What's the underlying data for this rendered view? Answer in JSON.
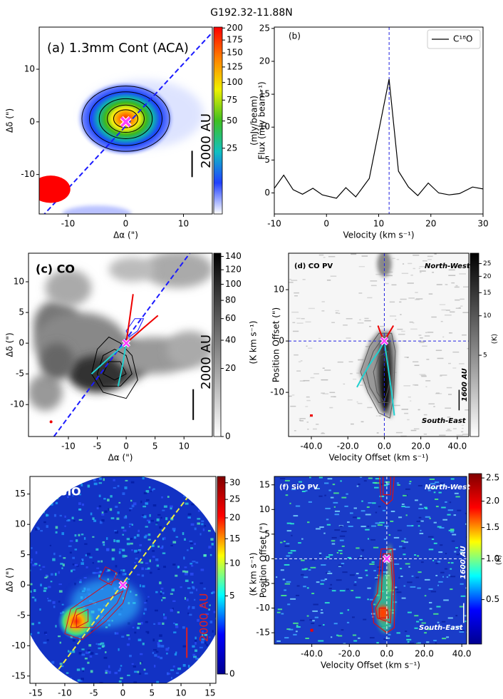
{
  "title": "G192.32-11.88N",
  "chart_data": [
    {
      "type": "image",
      "xlabel": "Δα (\")",
      "ylabel": "Δδ (\")",
      "xlim": [
        -15,
        15
      ],
      "ylim": [
        -17.5,
        18
      ],
      "xticks": [
        -10,
        0,
        10
      ],
      "yticks": [
        -10,
        0,
        10
      ],
      "colorbar": {
        "label": "(mJy/beam)",
        "lim": [
          0,
          202
        ],
        "ticks": [
          200,
          175,
          150,
          125,
          100,
          75,
          50,
          25
        ],
        "stretch": "sqrt",
        "cmap": "jet_white"
      },
      "marker": [
        0,
        0
      ],
      "annotations": [
        "(a) 1.3mm Cont (ACA)",
        "2000 AU"
      ]
    },
    {
      "type": "line",
      "xlabel": "Velocity  (km s⁻¹)",
      "ylabel": "Flux (mJy beam⁻¹)",
      "xlim": [
        -10,
        30
      ],
      "ylim": [
        -3.2,
        25.2
      ],
      "xticks": [
        -10,
        0,
        10,
        20,
        30
      ],
      "yticks": [
        0,
        5,
        10,
        15,
        20,
        25
      ],
      "x": [
        -10,
        -8.2,
        -6.4,
        -4.6,
        -2.6,
        -0.8,
        1.9,
        3.7,
        5.6,
        8.2,
        12,
        13.8,
        15.7,
        17.5,
        19.5,
        21.5,
        23.5,
        25.5,
        28,
        30
      ],
      "series": [
        {
          "name": "C¹⁸O",
          "color": "#000000",
          "values": [
            0.7,
            2.7,
            0.5,
            -0.2,
            0.7,
            -0.3,
            -0.8,
            0.8,
            -0.6,
            2.2,
            17.3,
            3.3,
            0.9,
            -0.4,
            1.5,
            0,
            -0.3,
            -0.1,
            0.9,
            0.6
          ]
        }
      ],
      "vline": 12,
      "legend": "upper right",
      "annotations": [
        "(b)"
      ]
    },
    {
      "type": "image",
      "xlabel": "Δα (\")",
      "ylabel": "Δδ (\")",
      "xlim": [
        -16.9,
        14.9
      ],
      "ylim": [
        -15.2,
        14.65
      ],
      "xticks": [
        -10,
        -5,
        0,
        5,
        10
      ],
      "yticks": [
        -10,
        -5,
        0,
        5,
        10
      ],
      "colorbar": {
        "label": "(K km s⁻¹)",
        "lim": [
          0,
          145
        ],
        "ticks": [
          140,
          120,
          100,
          80,
          60,
          40,
          20,
          0
        ],
        "stretch": "sqrt",
        "cmap": "gray_r"
      },
      "marker": [
        0,
        0
      ],
      "annotations": [
        "(c) CO",
        "2000 AU"
      ]
    },
    {
      "type": "image",
      "xlabel": "Velocity Offset (km s⁻¹)",
      "ylabel": "Position Offset (\")",
      "xlim": [
        -52.5,
        46.3
      ],
      "ylim": [
        -18.6,
        17.1
      ],
      "xticks": [
        {
          "value": -40,
          "label": "-40.0"
        },
        {
          "value": -20,
          "label": "-20.0"
        },
        {
          "value": 0,
          "label": "0.0"
        },
        {
          "value": 20,
          "label": "20.0"
        },
        {
          "value": 40,
          "label": "40.0"
        }
      ],
      "yticks": [
        -10,
        0,
        10
      ],
      "colorbar": {
        "label": "(K)",
        "lim": [
          1.2,
          30
        ],
        "ticks": [
          25,
          20,
          15,
          10,
          5
        ],
        "stretch": "log",
        "cmap": "gray_r"
      },
      "vline": 0,
      "hline": 0,
      "marker": [
        0,
        0
      ],
      "annotations": [
        "(d) CO PV",
        "North-West",
        "South-East",
        "1600 AU"
      ]
    },
    {
      "type": "image",
      "xlabel": "Δα (\")",
      "ylabel": "Δδ (\")",
      "xlim": [
        -16,
        16
      ],
      "ylim": [
        -16.2,
        17.9
      ],
      "xticks": [
        -15,
        -10,
        -5,
        0,
        5,
        10,
        15
      ],
      "yticks": [
        -15,
        -10,
        -5,
        0,
        5,
        10,
        15
      ],
      "colorbar": {
        "label": "(K km s⁻¹)",
        "lim": [
          0,
          32
        ],
        "ticks": [
          30,
          25,
          20,
          15,
          10,
          5,
          0
        ],
        "stretch": "sqrt",
        "cmap": "jet"
      },
      "marker": [
        0,
        0
      ],
      "annotations": [
        "(e) SiO",
        "2000 AU"
      ]
    },
    {
      "type": "image",
      "xlabel": "Velocity Offset (km s⁻¹)",
      "ylabel": "Position Offset (\")",
      "xlim": [
        -60,
        42.6
      ],
      "ylim": [
        -17.3,
        16.7
      ],
      "xticks": [
        {
          "value": -40,
          "label": "-40.0"
        },
        {
          "value": -20,
          "label": "-20.0"
        },
        {
          "value": 0,
          "label": "0.0"
        },
        {
          "value": 20,
          "label": "20.0"
        },
        {
          "value": 40,
          "label": "40.0"
        }
      ],
      "yticks": [
        -15,
        -10,
        -5,
        0,
        5,
        10,
        15
      ],
      "colorbar": {
        "label": "(K)",
        "lim": [
          0.15,
          2.6
        ],
        "ticks": [
          2.5,
          {
            "value": 2,
            "label": "2.0"
          },
          1.5,
          {
            "value": 1,
            "label": "1.0"
          },
          0.5
        ],
        "stretch": "sqrt",
        "cmap": "jet"
      },
      "vline": 0,
      "hline": 0,
      "marker": [
        0,
        0
      ],
      "annotations": [
        "(f) SiO PV",
        "North-West",
        "South-East",
        "1600 AU"
      ]
    }
  ]
}
